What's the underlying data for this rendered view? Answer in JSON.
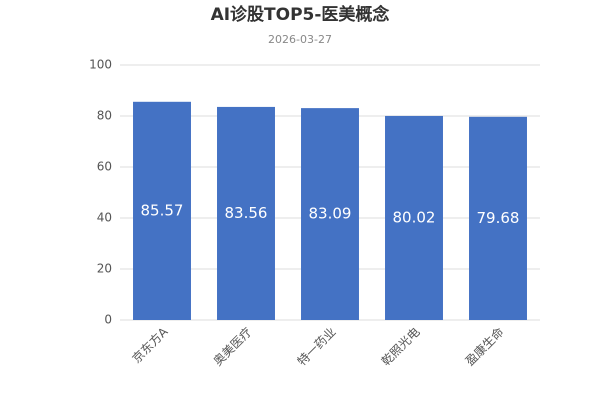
{
  "chart_data": {
    "type": "bar",
    "title": "AI诊股TOP5-医美概念",
    "subtitle": "2026-03-27",
    "categories": [
      "京东方A",
      "奥美医疗",
      "特一药业",
      "乾照光电",
      "盈康生命"
    ],
    "values": [
      85.57,
      83.56,
      83.09,
      80.02,
      79.68
    ],
    "color": "#4472c4",
    "ylim": [
      0,
      100
    ],
    "yticks": [
      0,
      20,
      40,
      60,
      80,
      100
    ],
    "grid": true
  }
}
